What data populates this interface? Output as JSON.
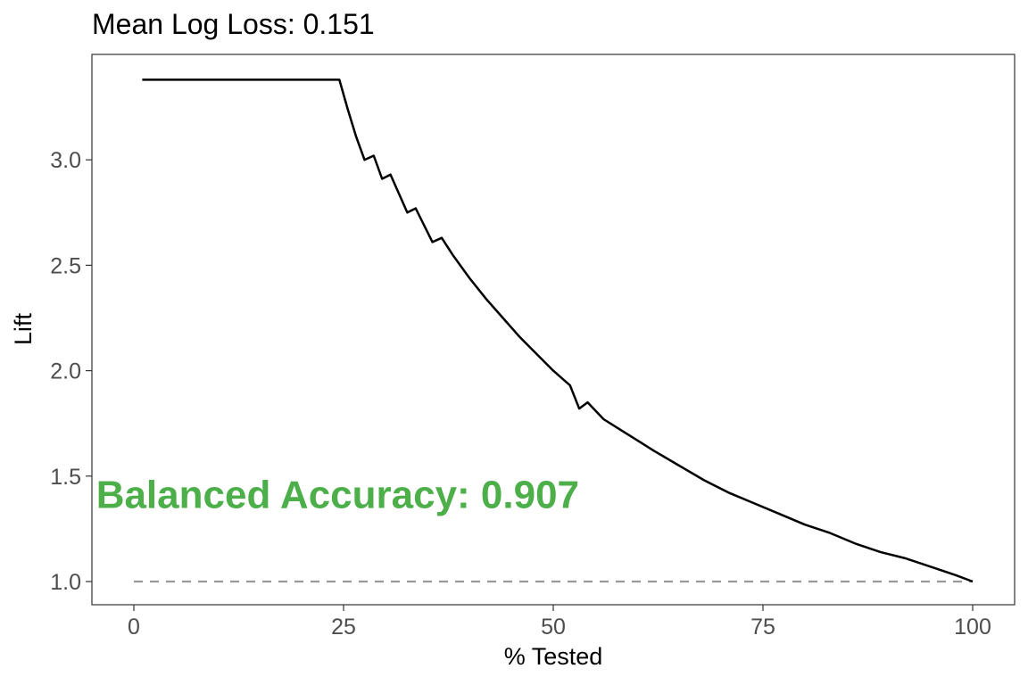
{
  "chart_data": {
    "type": "line",
    "title": "Mean Log Loss: 0.151",
    "xlabel": "% Tested",
    "ylabel": "Lift",
    "xlim": [
      -5,
      105
    ],
    "ylim": [
      0.89,
      3.5
    ],
    "x_ticks": [
      0,
      25,
      50,
      75,
      100
    ],
    "x_tick_labels": [
      "0",
      "25",
      "50",
      "75",
      "100"
    ],
    "y_ticks": [
      1.0,
      1.5,
      2.0,
      2.5,
      3.0
    ],
    "y_tick_labels": [
      "1.0",
      "1.5",
      "2.0",
      "2.5",
      "3.0"
    ],
    "grid": false,
    "series": [
      {
        "color": "#000000",
        "x": [
          1,
          5,
          10,
          15,
          20,
          24.5,
          25.5,
          26.5,
          27.5,
          28.6,
          29.6,
          30.6,
          31.6,
          32.6,
          33.6,
          34.6,
          35.6,
          36.7,
          38,
          40,
          42,
          44,
          46,
          48,
          50,
          52,
          53.1,
          54.1,
          56,
          58,
          60,
          62,
          65,
          68,
          71,
          74,
          77,
          80,
          83,
          86,
          89,
          92,
          95,
          98,
          100
        ],
        "y": [
          3.38,
          3.38,
          3.38,
          3.38,
          3.38,
          3.38,
          3.24,
          3.11,
          3.0,
          3.02,
          2.91,
          2.93,
          2.84,
          2.75,
          2.77,
          2.69,
          2.61,
          2.63,
          2.55,
          2.44,
          2.34,
          2.25,
          2.16,
          2.08,
          2.0,
          1.93,
          1.82,
          1.85,
          1.77,
          1.72,
          1.67,
          1.62,
          1.55,
          1.48,
          1.42,
          1.37,
          1.32,
          1.27,
          1.23,
          1.18,
          1.14,
          1.11,
          1.07,
          1.03,
          1.0
        ]
      }
    ],
    "reference_line": {
      "x": [
        0,
        100
      ],
      "y": [
        1.0,
        1.0
      ],
      "color": "#999999",
      "style": "dashed"
    },
    "annotation": {
      "text": "Balanced Accuracy: 0.907",
      "x": -4.5,
      "y": 1.35,
      "color": "#4daf4a"
    }
  }
}
